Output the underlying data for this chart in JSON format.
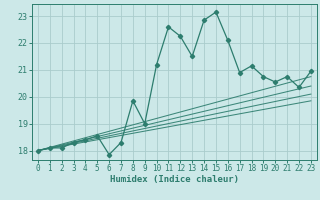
{
  "xlabel": "Humidex (Indice chaleur)",
  "bg_color": "#cce8e8",
  "grid_color": "#aacccc",
  "line_color": "#2d7d6e",
  "xlim": [
    -0.5,
    23.5
  ],
  "ylim": [
    17.65,
    23.45
  ],
  "yticks": [
    18,
    19,
    20,
    21,
    22,
    23
  ],
  "xticks": [
    0,
    1,
    2,
    3,
    4,
    5,
    6,
    7,
    8,
    9,
    10,
    11,
    12,
    13,
    14,
    15,
    16,
    17,
    18,
    19,
    20,
    21,
    22,
    23
  ],
  "series": [
    [
      0,
      18.0
    ],
    [
      1,
      18.1
    ],
    [
      2,
      18.1
    ],
    [
      3,
      18.3
    ],
    [
      4,
      18.4
    ],
    [
      5,
      18.55
    ],
    [
      6,
      17.85
    ],
    [
      7,
      18.3
    ],
    [
      8,
      19.85
    ],
    [
      9,
      19.0
    ],
    [
      10,
      21.2
    ],
    [
      11,
      22.6
    ],
    [
      12,
      22.25
    ],
    [
      13,
      21.5
    ],
    [
      14,
      22.85
    ],
    [
      15,
      23.15
    ],
    [
      16,
      22.1
    ],
    [
      17,
      20.9
    ],
    [
      18,
      21.15
    ],
    [
      19,
      20.75
    ],
    [
      20,
      20.55
    ],
    [
      21,
      20.75
    ],
    [
      22,
      20.35
    ],
    [
      23,
      20.95
    ]
  ],
  "linear_lines": [
    {
      "x": [
        0,
        23
      ],
      "y": [
        18.0,
        19.85
      ]
    },
    {
      "x": [
        0,
        23
      ],
      "y": [
        18.0,
        20.1
      ]
    },
    {
      "x": [
        0,
        23
      ],
      "y": [
        18.0,
        20.4
      ]
    },
    {
      "x": [
        0,
        23
      ],
      "y": [
        18.0,
        20.75
      ]
    }
  ]
}
